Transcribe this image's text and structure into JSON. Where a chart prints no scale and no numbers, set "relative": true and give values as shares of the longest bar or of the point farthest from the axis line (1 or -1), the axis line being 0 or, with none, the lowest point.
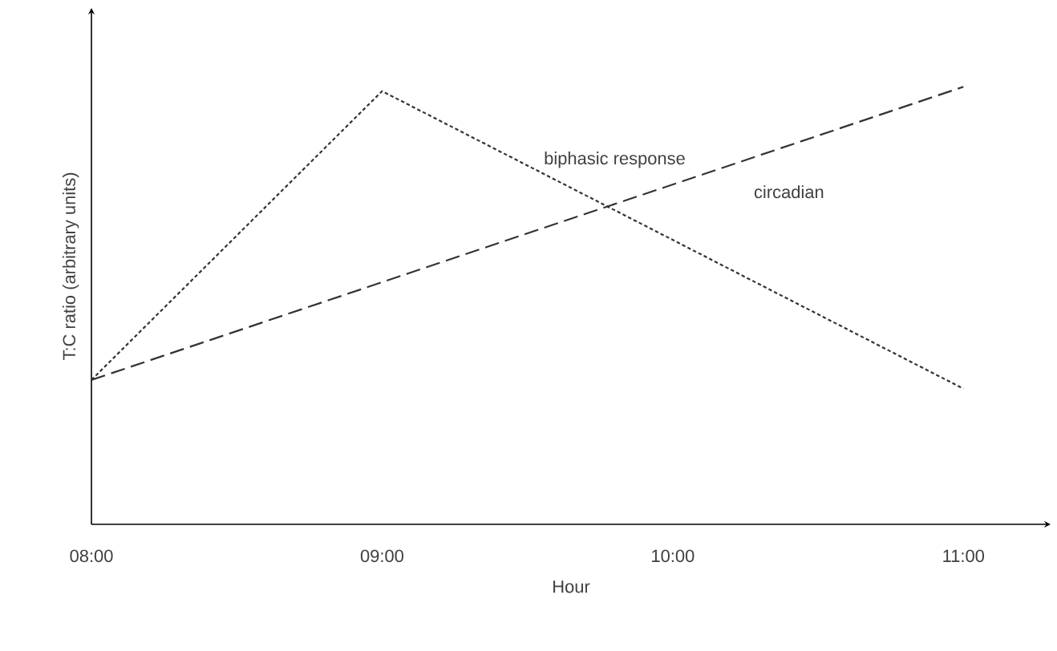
{
  "chart_data": {
    "type": "line",
    "relative": true,
    "xlabel": "Hour",
    "ylabel": "T:C ratio (arbitrary units)",
    "xlim": [
      8,
      11.3
    ],
    "xticks": [
      {
        "value": 8,
        "label": "08:00"
      },
      {
        "value": 9,
        "label": "09:00"
      },
      {
        "value": 10,
        "label": "10:00"
      },
      {
        "value": 11,
        "label": "11:00"
      }
    ],
    "legend": false,
    "grid": false,
    "series": [
      {
        "name": "biphasic response",
        "color": "#333333",
        "line_style": "dotted",
        "x": [
          8,
          9,
          11
        ],
        "values": [
          0.33,
          0.99,
          0.31
        ]
      },
      {
        "name": "circadian",
        "color": "#333333",
        "line_style": "dashed",
        "x": [
          8,
          11
        ],
        "values": [
          0.33,
          1
        ]
      }
    ]
  }
}
